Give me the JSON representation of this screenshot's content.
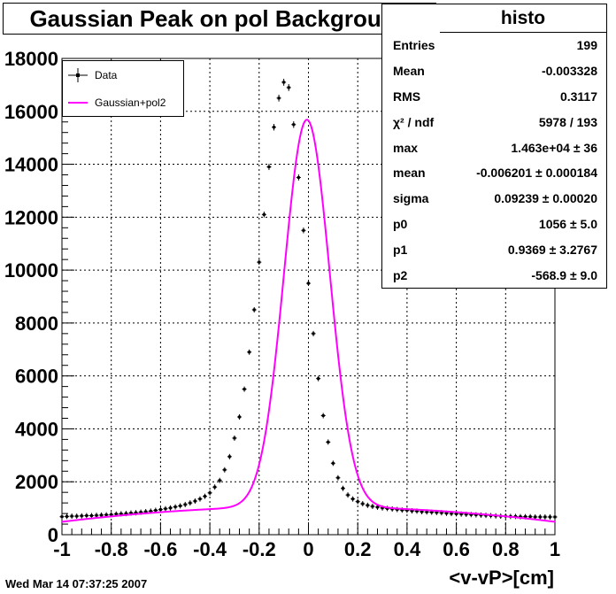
{
  "title": "Gaussian Peak on pol Background",
  "stats": {
    "header": "histo",
    "rows": [
      {
        "label": "Entries",
        "value": "199"
      },
      {
        "label": "Mean",
        "value": "-0.003328"
      },
      {
        "label": "RMS",
        "value": "0.3117"
      },
      {
        "label": "χ² / ndf",
        "value": "5978 / 193"
      },
      {
        "label": "max",
        "value": "1.463e+04 ± 36"
      },
      {
        "label": "mean",
        "value": "-0.006201 ± 0.000184"
      },
      {
        "label": "sigma",
        "value": "0.09239 ± 0.00020"
      },
      {
        "label": "p0",
        "value": "1056 ± 5.0"
      },
      {
        "label": "p1",
        "value": "0.9369 ± 3.2767"
      },
      {
        "label": "p2",
        "value": "-568.9 ± 9.0"
      }
    ]
  },
  "legend": {
    "data_label": "Data",
    "fit_label": "Gaussian+pol2"
  },
  "timestamp": "Wed Mar 14 07:37:25 2007",
  "colors": {
    "fit": "#ff00ff",
    "data": "#000000",
    "grid": "#000000"
  },
  "chart_data": {
    "type": "scatter",
    "xlabel": "<v-vP>[cm]",
    "ylabel": "",
    "xlim": [
      -1,
      1
    ],
    "ylim": [
      0,
      18000
    ],
    "x_ticks": [
      "-1",
      "-0.8",
      "-0.6",
      "-0.4",
      "-0.2",
      "0",
      "0.2",
      "0.4",
      "0.6",
      "0.8",
      "1"
    ],
    "y_ticks": [
      "0",
      "2000",
      "4000",
      "6000",
      "8000",
      "10000",
      "12000",
      "14000",
      "16000",
      "18000"
    ],
    "grid": true,
    "legend_position": "top-left",
    "series": [
      {
        "name": "Data",
        "style": "points-with-errors",
        "x": [
          -1.0,
          -0.98,
          -0.96,
          -0.94,
          -0.92,
          -0.9,
          -0.88,
          -0.86,
          -0.84,
          -0.82,
          -0.8,
          -0.78,
          -0.76,
          -0.74,
          -0.72,
          -0.7,
          -0.68,
          -0.66,
          -0.64,
          -0.62,
          -0.6,
          -0.58,
          -0.56,
          -0.54,
          -0.52,
          -0.5,
          -0.48,
          -0.46,
          -0.44,
          -0.42,
          -0.4,
          -0.38,
          -0.36,
          -0.34,
          -0.32,
          -0.3,
          -0.28,
          -0.26,
          -0.24,
          -0.22,
          -0.2,
          -0.18,
          -0.16,
          -0.14,
          -0.12,
          -0.1,
          -0.08,
          -0.06,
          -0.04,
          -0.02,
          0.0,
          0.02,
          0.04,
          0.06,
          0.08,
          0.1,
          0.12,
          0.14,
          0.16,
          0.18,
          0.2,
          0.22,
          0.24,
          0.26,
          0.28,
          0.3,
          0.32,
          0.34,
          0.36,
          0.38,
          0.4,
          0.42,
          0.44,
          0.46,
          0.48,
          0.5,
          0.52,
          0.54,
          0.56,
          0.58,
          0.6,
          0.62,
          0.64,
          0.66,
          0.68,
          0.7,
          0.72,
          0.74,
          0.76,
          0.78,
          0.8,
          0.82,
          0.84,
          0.86,
          0.88,
          0.9,
          0.92,
          0.94,
          0.96,
          0.98,
          1.0
        ],
        "y": [
          680,
          690,
          700,
          700,
          710,
          720,
          720,
          730,
          740,
          750,
          760,
          780,
          790,
          800,
          820,
          830,
          850,
          870,
          890,
          920,
          950,
          980,
          1010,
          1050,
          1090,
          1140,
          1200,
          1270,
          1350,
          1450,
          1580,
          1800,
          2050,
          2450,
          2950,
          3650,
          4450,
          5500,
          6900,
          8500,
          10300,
          12100,
          13900,
          15400,
          16500,
          17100,
          16900,
          15500,
          13500,
          11500,
          9500,
          7600,
          5900,
          4500,
          3500,
          2700,
          2150,
          1750,
          1500,
          1350,
          1250,
          1170,
          1110,
          1070,
          1040,
          1010,
          990,
          970,
          950,
          930,
          920,
          900,
          890,
          870,
          860,
          850,
          840,
          830,
          810,
          800,
          790,
          780,
          770,
          760,
          750,
          740,
          730,
          720,
          710,
          700,
          700,
          690,
          690,
          680,
          680,
          680,
          670,
          670,
          670,
          670,
          670
        ]
      },
      {
        "name": "Gaussian+pol2",
        "style": "line",
        "fit": {
          "max": 14630,
          "mean": -0.006201,
          "sigma": 0.09239,
          "p0": 1056,
          "p1": 0.9369,
          "p2": -568.9
        }
      }
    ]
  }
}
